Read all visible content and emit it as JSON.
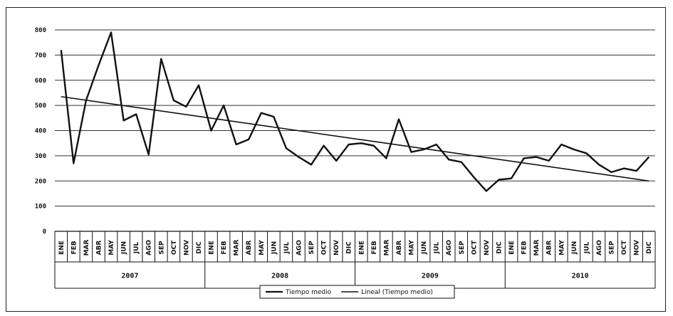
{
  "chart_data": {
    "type": "line",
    "title": "",
    "xlabel": "",
    "ylabel": "",
    "ylim": [
      0,
      800
    ],
    "yticks": [
      "0",
      "100",
      "200",
      "300",
      "400",
      "500",
      "600",
      "700",
      "800"
    ],
    "grid": true,
    "legend_position": "bottom",
    "month_labels": [
      "ENE",
      "FEB",
      "MAR",
      "ABR",
      "MAY",
      "JUN",
      "JUL",
      "AGO",
      "SEP",
      "OCT",
      "NOV",
      "DIC"
    ],
    "years": [
      "2007",
      "2008",
      "2009",
      "2010"
    ],
    "series": [
      {
        "name": "Tiempo medio",
        "color": "#111111",
        "values": [
          720,
          270,
          520,
          660,
          790,
          440,
          465,
          305,
          685,
          520,
          495,
          580,
          400,
          500,
          345,
          365,
          470,
          455,
          330,
          295,
          265,
          340,
          280,
          345,
          350,
          340,
          290,
          445,
          315,
          325,
          345,
          285,
          275,
          215,
          160,
          205,
          210,
          290,
          295,
          280,
          345,
          325,
          310,
          265,
          235,
          250,
          240,
          295
        ]
      },
      {
        "name": "Lineal (Tiempo medio)",
        "color": "#111111",
        "values": [
          535,
          200
        ]
      }
    ]
  }
}
